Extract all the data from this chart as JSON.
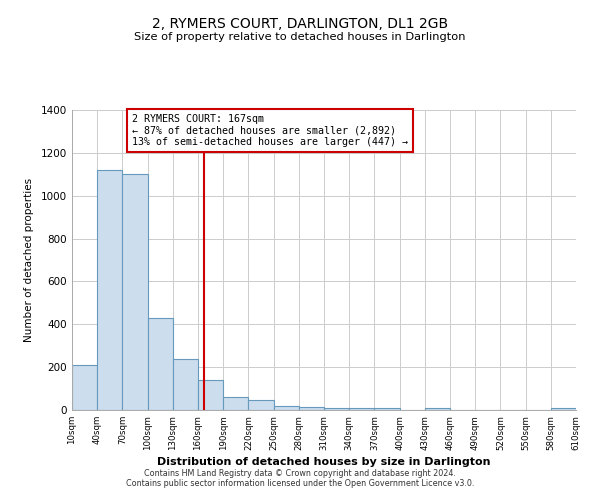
{
  "title": "2, RYMERS COURT, DARLINGTON, DL1 2GB",
  "subtitle": "Size of property relative to detached houses in Darlington",
  "xlabel": "Distribution of detached houses by size in Darlington",
  "ylabel": "Number of detached properties",
  "bar_color": "#ccdded",
  "bar_edge_color": "#6699bb",
  "vline_x": 167,
  "vline_color": "#cc0000",
  "annotation_title": "2 RYMERS COURT: 167sqm",
  "annotation_line1": "← 87% of detached houses are smaller (2,892)",
  "annotation_line2": "13% of semi-detached houses are larger (447) →",
  "annotation_box_color": "#ffffff",
  "annotation_box_edge_color": "#cc0000",
  "footer1": "Contains HM Land Registry data © Crown copyright and database right 2024.",
  "footer2": "Contains public sector information licensed under the Open Government Licence v3.0.",
  "bin_edges": [
    10,
    40,
    70,
    100,
    130,
    160,
    190,
    220,
    250,
    280,
    310,
    340,
    370,
    400,
    430,
    460,
    490,
    520,
    550,
    580,
    610
  ],
  "bin_heights": [
    210,
    1120,
    1100,
    430,
    240,
    140,
    60,
    45,
    20,
    15,
    10,
    10,
    10,
    0,
    10,
    0,
    0,
    0,
    0,
    10
  ],
  "ylim": [
    0,
    1400
  ],
  "xlim": [
    10,
    610
  ],
  "background_color": "#ffffff",
  "plot_bg_color": "#ffffff",
  "grid_color": "#cccccc"
}
